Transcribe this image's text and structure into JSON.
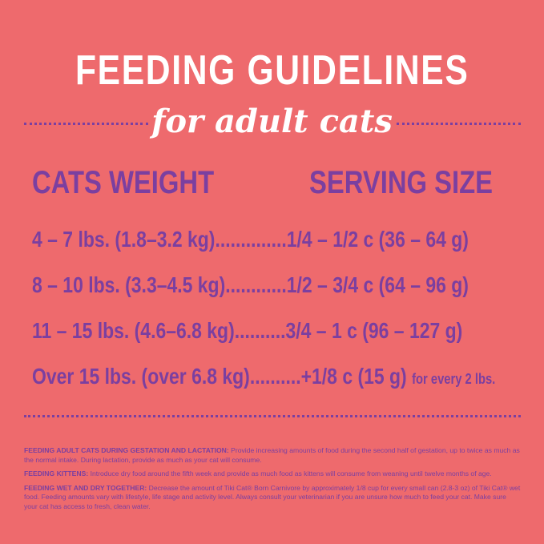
{
  "title": "FEEDING GUIDELINES",
  "subtitle": "for adult cats",
  "headers": {
    "weight": "CATS WEIGHT",
    "serving": "SERVING SIZE"
  },
  "rows": [
    {
      "weight": "4 – 7 lbs. (1.8–3.2 kg)..............",
      "serving": "1/4 – 1/2 c (36 – 64 g)",
      "note": ""
    },
    {
      "weight": "8 – 10 lbs. (3.3–4.5 kg)............",
      "serving": "1/2 – 3/4 c (64 – 96 g)",
      "note": ""
    },
    {
      "weight": "11 – 15 lbs. (4.6–6.8 kg)..........",
      "serving": "3/4 – 1 c (96 – 127 g)",
      "note": ""
    },
    {
      "weight": "Over 15 lbs. (over 6.8 kg)..........",
      "serving": "+1/8 c (15 g)",
      "note": "for every 2 lbs."
    }
  ],
  "notes": [
    {
      "label": "FEEDING ADULT CATS DURING GESTATION AND LACTATION:",
      "text": " Provide increasing amounts of food during the second half of gestation, up to twice as much as the normal intake.  During lactation, provide as much as your cat will consume."
    },
    {
      "label": "FEEDING KITTENS:",
      "text": " Introduce dry food around the fifth week and provide as much food as kittens will consume from weaning until twelve months of age."
    },
    {
      "label": "FEEDING WET AND DRY TOGETHER:",
      "text": " Decrease the amount of Tiki Cat® Born Carnivore by approximately 1/8 cup for every small can (2.8-3 oz) of Tiki Cat® wet food. Feeding amounts vary with lifestyle, life stage and activity level.  Always consult your veterinarian if you are unsure how much to feed your cat. Make sure your cat has access to fresh, clean water."
    }
  ],
  "colors": {
    "background": "#ee6a6d",
    "accent": "#7b3fa0",
    "title": "#ffffff"
  }
}
